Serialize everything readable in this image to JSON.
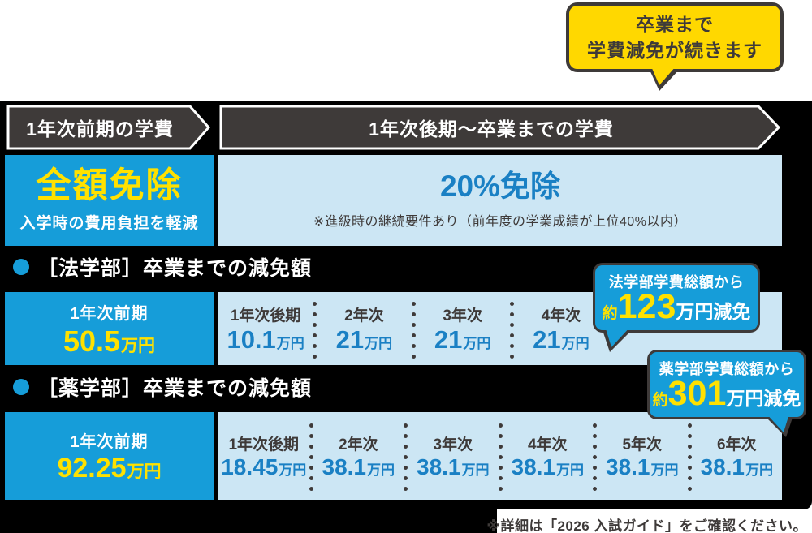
{
  "callout_top": {
    "line1": "卒業まで",
    "line2": "学費減免が続きます"
  },
  "headers": {
    "left": "1年次前期の学費",
    "right": "1年次後期〜卒業までの学費"
  },
  "summary": {
    "left": {
      "title": "全額免除",
      "subtitle": "入学時の費用負担を軽減"
    },
    "right": {
      "title": "20%免除",
      "note": "※進級時の継続要件あり（前年度の学業成績が上位40%以内）"
    }
  },
  "law": {
    "section_title": "［法学部］卒業までの減免額",
    "main": {
      "label": "1年次前期",
      "value": "50.5",
      "unit": "万円"
    },
    "columns": [
      {
        "label": "1年次後期",
        "value": "10.1",
        "unit": "万円"
      },
      {
        "label": "2年次",
        "value": "21",
        "unit": "万円"
      },
      {
        "label": "3年次",
        "value": "21",
        "unit": "万円"
      },
      {
        "label": "4年次",
        "value": "21",
        "unit": "万円"
      }
    ],
    "badge": {
      "line1": "法学部学費総額から",
      "prefix": "約",
      "amount": "123",
      "suffix": "万円減免"
    }
  },
  "pharm": {
    "section_title": "［薬学部］卒業までの減免額",
    "main": {
      "label": "1年次前期",
      "value": "92.25",
      "unit": "万円"
    },
    "columns": [
      {
        "label": "1年次後期",
        "value": "18.45",
        "unit": "万円"
      },
      {
        "label": "2年次",
        "value": "38.1",
        "unit": "万円"
      },
      {
        "label": "3年次",
        "value": "38.1",
        "unit": "万円"
      },
      {
        "label": "4年次",
        "value": "38.1",
        "unit": "万円"
      },
      {
        "label": "5年次",
        "value": "38.1",
        "unit": "万円"
      },
      {
        "label": "6年次",
        "value": "38.1",
        "unit": "万円"
      }
    ],
    "badge": {
      "line1": "薬学部学費総額から",
      "prefix": "約",
      "amount": "301",
      "suffix": "万円減免"
    }
  },
  "footnote": "※詳細は「2026 入試ガイド」をご確認ください。",
  "colors": {
    "brand_blue": "#169DD9",
    "light_blue": "#CCE6F4",
    "value_blue": "#1A80C4",
    "accent_yellow": "#FFE100",
    "bubble_yellow": "#FFD800",
    "dark_gray": "#3E3A39",
    "frame_black": "#000000"
  }
}
